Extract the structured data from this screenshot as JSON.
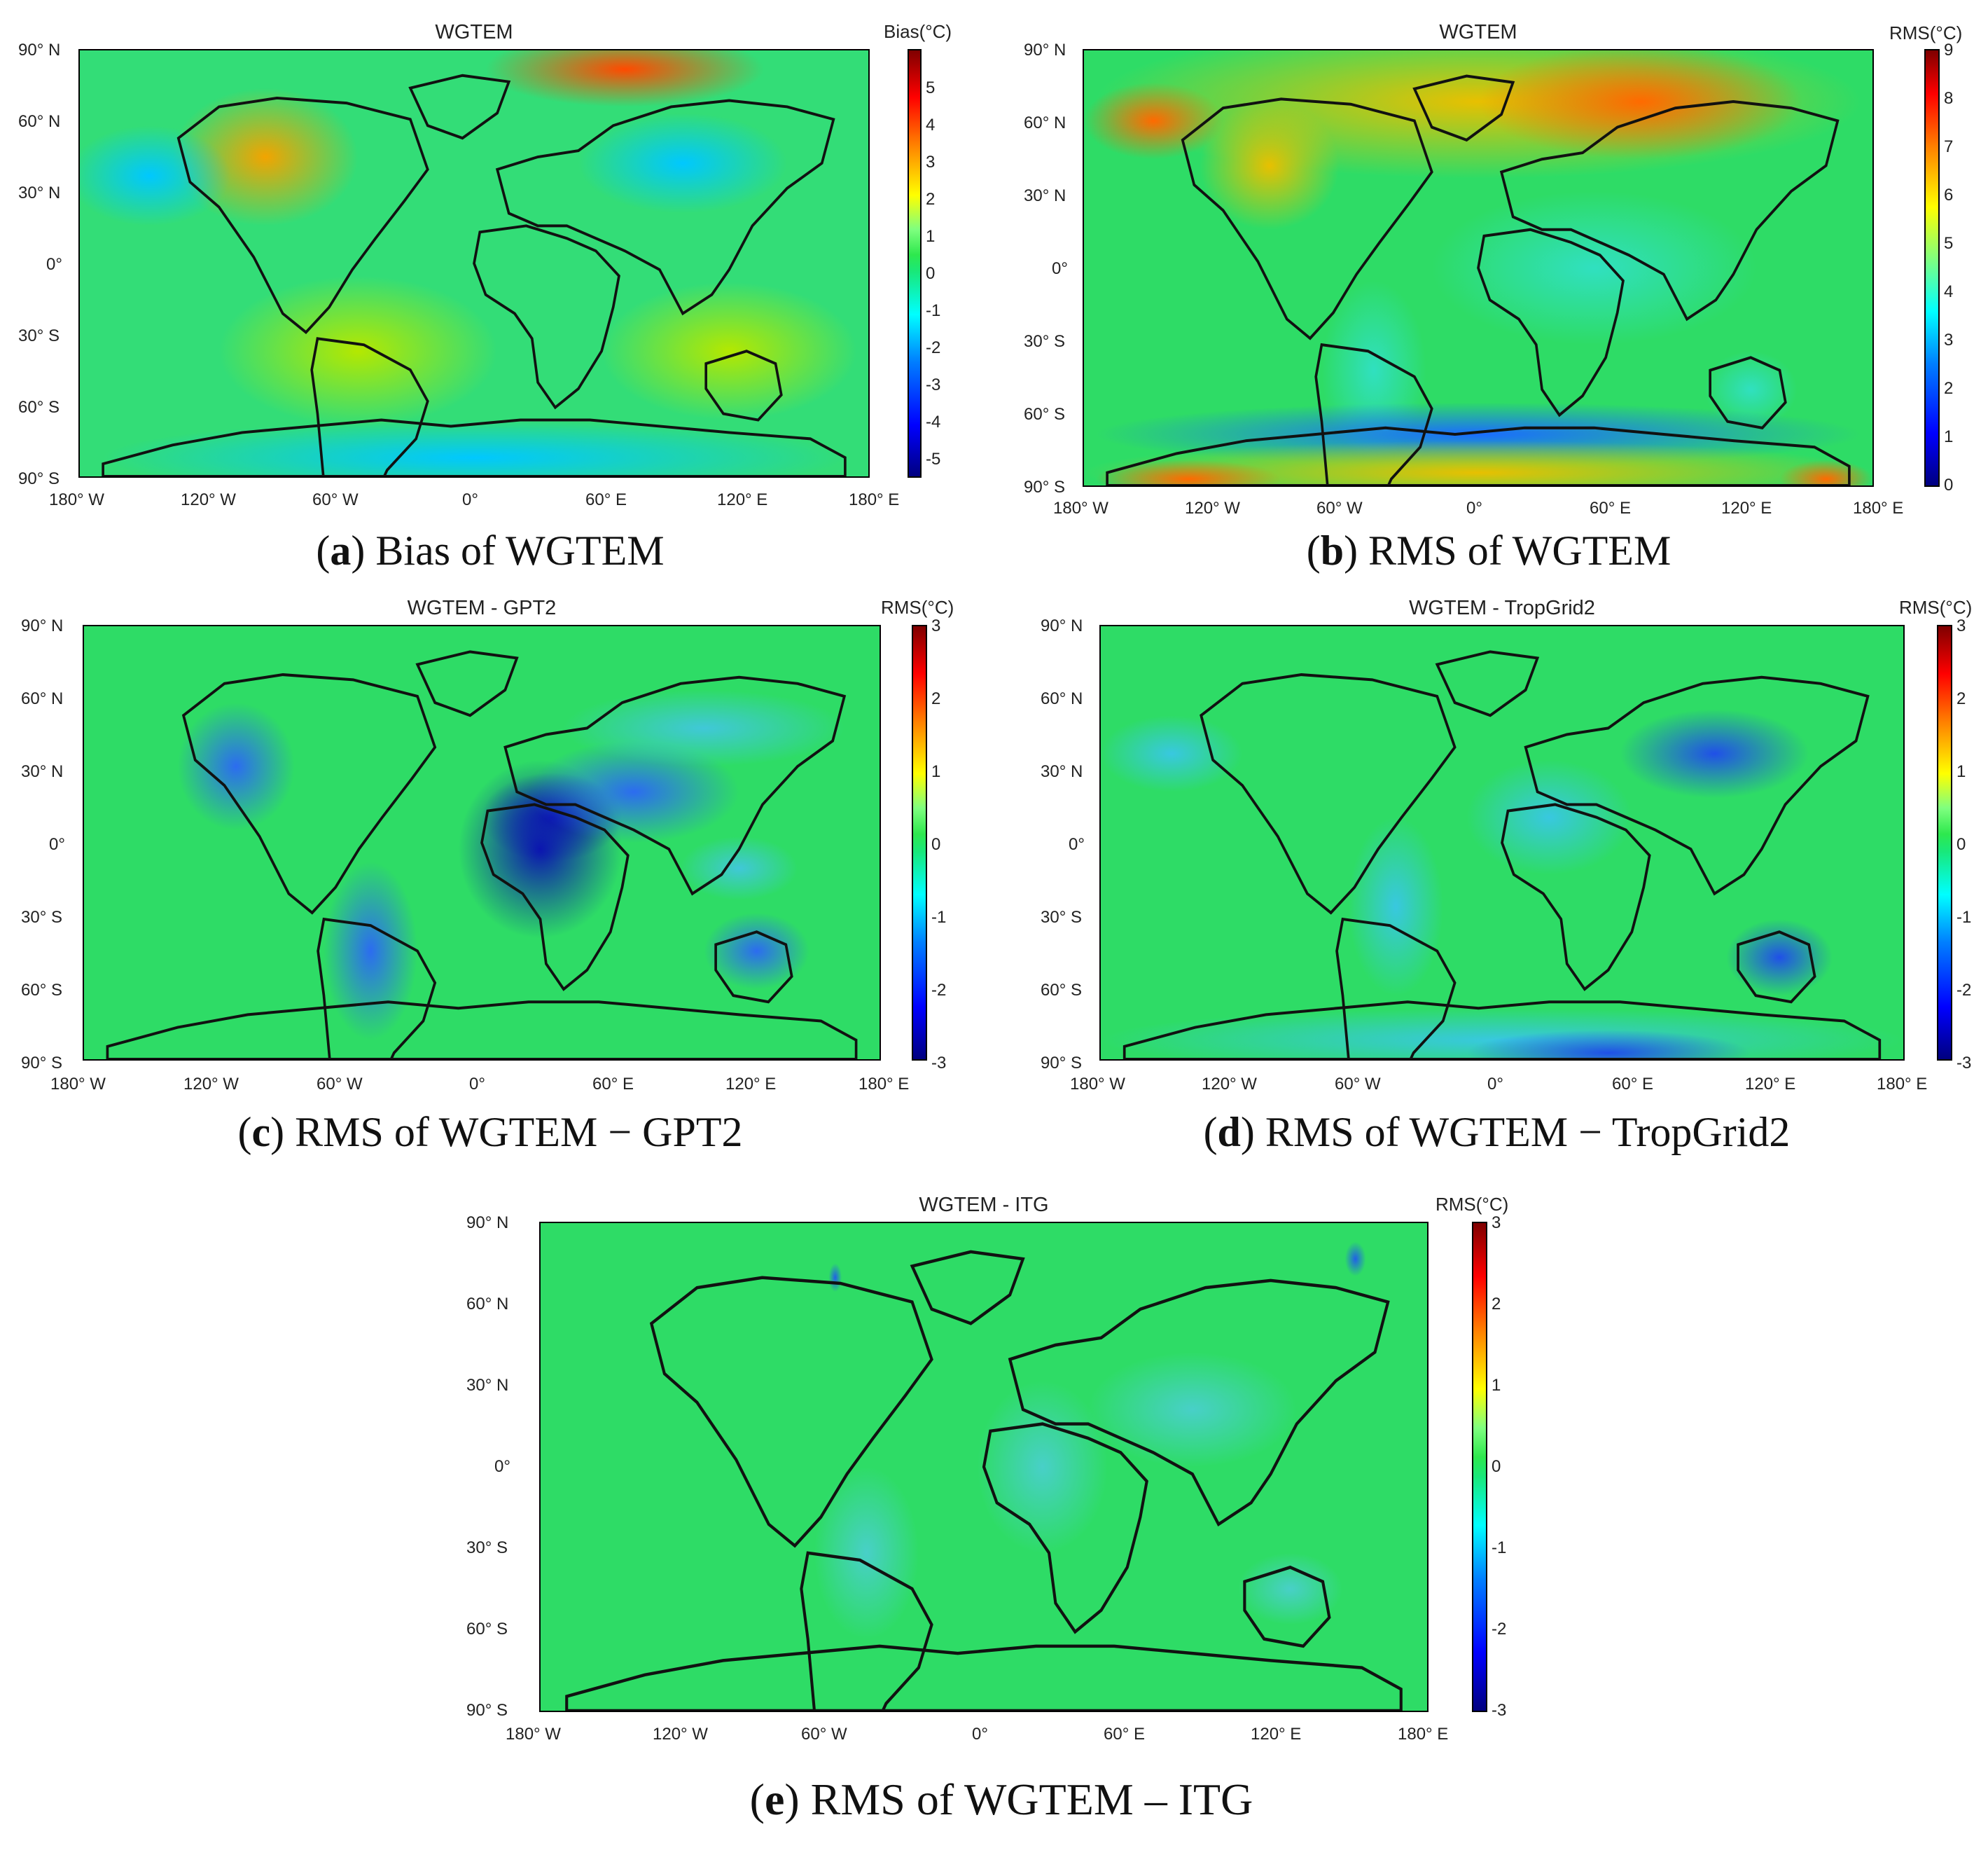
{
  "panels": [
    {
      "id": "a",
      "title": "WGTEM",
      "colorbar_title": "Bias(°C)",
      "colorbar_ticks": [
        "5",
        "4",
        "3",
        "2",
        "1",
        "0",
        "-1",
        "-2",
        "-3",
        "-4",
        "-5"
      ],
      "caption_letter": "a",
      "caption_text": " Bias of WGTEM",
      "background": "#33dd77"
    },
    {
      "id": "b",
      "title": "WGTEM",
      "colorbar_title": "RMS(°C)",
      "colorbar_ticks": [
        "9",
        "8",
        "7",
        "6",
        "5",
        "4",
        "3",
        "2",
        "1",
        "0"
      ],
      "caption_letter": "b",
      "caption_text": " RMS of WGTEM",
      "background": "#0a1fd6"
    },
    {
      "id": "c",
      "title": "WGTEM - GPT2",
      "colorbar_title": "RMS(°C)",
      "colorbar_ticks": [
        "3",
        "2",
        "1",
        "0",
        "-1",
        "-2",
        "-3"
      ],
      "caption_letter": "c",
      "caption_text": " RMS of WGTEM − GPT2",
      "background": "#2edc66"
    },
    {
      "id": "d",
      "title": "WGTEM - TropGrid2",
      "colorbar_title": "RMS(°C)",
      "colorbar_ticks": [
        "3",
        "2",
        "1",
        "0",
        "-1",
        "-2",
        "-3"
      ],
      "caption_letter": "d",
      "caption_text": " RMS of WGTEM − TropGrid2",
      "background": "#2edc66"
    },
    {
      "id": "e",
      "title": "WGTEM - ITG",
      "colorbar_title": "RMS(°C)",
      "colorbar_ticks": [
        "3",
        "2",
        "1",
        "0",
        "-1",
        "-2",
        "-3"
      ],
      "caption_letter": "e",
      "caption_text": " RMS of WGTEM – ITG",
      "background": "#2edc66"
    }
  ],
  "axes": {
    "lat_ticks": [
      "90° N",
      "60° N",
      "30° N",
      "0°",
      "30° S",
      "60° S",
      "90° S"
    ],
    "lon_ticks": [
      "180° W",
      "120° W",
      "60° W",
      "0°",
      "60° E",
      "120° E",
      "180° E"
    ]
  },
  "caption_parens": {
    "open": "(",
    "close": ")"
  }
}
